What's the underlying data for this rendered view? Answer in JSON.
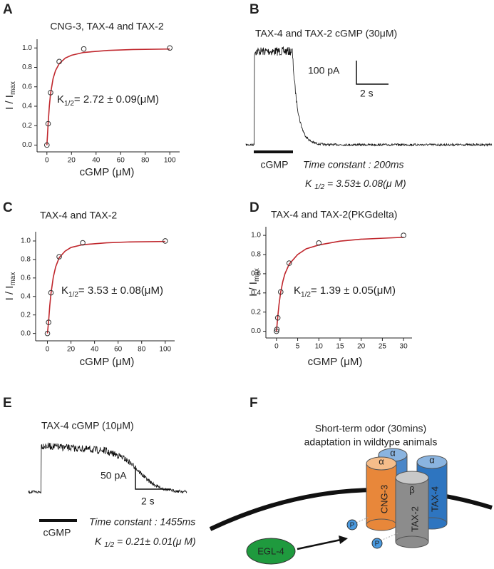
{
  "chart_data": [
    {
      "type": "scatter",
      "panel": "A",
      "title": "CNG-3, TAX-4 and TAX-2",
      "xlabel": "cGMP (μM)",
      "ylabel": "I / I",
      "ylabel_sub": "max",
      "annotation": {
        "main": "K",
        "sub": "1/2",
        "rest": "= 2.72 ± 0.09(μM)"
      },
      "x": [
        0,
        1,
        3,
        10,
        30,
        100
      ],
      "values": [
        0,
        0.22,
        0.54,
        0.86,
        0.99,
        1.0
      ],
      "fit": {
        "color": "#c0272d",
        "x": [
          0,
          0.5,
          1,
          2,
          3,
          5,
          7,
          10,
          15,
          20,
          30,
          50,
          70,
          100
        ],
        "values": [
          0,
          0.106,
          0.22,
          0.404,
          0.531,
          0.683,
          0.767,
          0.838,
          0.896,
          0.925,
          0.954,
          0.975,
          0.984,
          0.989
        ]
      },
      "xlim": [
        -8,
        108
      ],
      "ylim": [
        -0.07,
        1.09
      ],
      "xticks": [
        0,
        20,
        40,
        60,
        80,
        100
      ],
      "yticks": [
        {
          "value": 0,
          "label": "0.0"
        },
        {
          "value": 0.2,
          "label": "0.2"
        },
        {
          "value": 0.4,
          "label": "0.4"
        },
        {
          "value": 0.6,
          "label": "0.6"
        },
        {
          "value": 0.8,
          "label": "0.8"
        },
        {
          "value": 1,
          "label": "1.0"
        }
      ]
    },
    {
      "type": "scatter",
      "panel": "C",
      "title": "TAX-4 and TAX-2",
      "xlabel": "cGMP (μM)",
      "ylabel": "I / I",
      "ylabel_sub": "max",
      "annotation": {
        "main": "K",
        "sub": "1/2",
        "rest": "= 3.53 ± 0.08(μM)"
      },
      "x": [
        0,
        1,
        3,
        10,
        30,
        100
      ],
      "values": [
        0,
        0.12,
        0.44,
        0.83,
        0.98,
        1.0
      ],
      "fit": {
        "color": "#c0272d",
        "x": [
          0,
          1,
          2,
          3,
          5,
          7,
          10,
          15,
          20,
          30,
          50,
          70,
          100
        ],
        "values": [
          0,
          0.13,
          0.3,
          0.43,
          0.61,
          0.72,
          0.82,
          0.89,
          0.93,
          0.96,
          0.98,
          0.99,
          0.995
        ]
      },
      "xlim": [
        -10,
        108
      ],
      "ylim": [
        -0.08,
        1.1
      ],
      "xticks": [
        0,
        20,
        40,
        60,
        80,
        100
      ],
      "yticks": [
        {
          "value": 0,
          "label": "0.0"
        },
        {
          "value": 0.2,
          "label": "0.2"
        },
        {
          "value": 0.4,
          "label": "0.4"
        },
        {
          "value": 0.6,
          "label": "0.6"
        },
        {
          "value": 0.8,
          "label": "0.8"
        },
        {
          "value": 1,
          "label": "1.0"
        }
      ]
    },
    {
      "type": "scatter",
      "panel": "D",
      "title": "TAX-4 and TAX-2(PKGdelta)",
      "xlabel": "cGMP (μM)",
      "ylabel": "I / I",
      "ylabel_sub": "max",
      "annotation": {
        "main": "K",
        "sub": "1/2",
        "rest": "= 1.39  ± 0.05(μM)"
      },
      "x": [
        0,
        0.1,
        0.3,
        1,
        3,
        10,
        30
      ],
      "values": [
        0,
        0.02,
        0.14,
        0.41,
        0.71,
        0.92,
        1.0
      ],
      "fit": {
        "color": "#c0272d",
        "x": [
          0,
          0.3,
          0.6,
          1,
          1.5,
          2,
          3,
          5,
          7,
          10,
          15,
          20,
          25,
          30
        ],
        "values": [
          0,
          0.15,
          0.28,
          0.41,
          0.52,
          0.6,
          0.7,
          0.8,
          0.86,
          0.9,
          0.94,
          0.96,
          0.97,
          0.98
        ]
      },
      "xlim": [
        -2.5,
        32
      ],
      "ylim": [
        -0.07,
        1.09
      ],
      "xticks": [
        0,
        5,
        10,
        15,
        20,
        25,
        30
      ],
      "yticks": [
        {
          "value": 0,
          "label": "0.0"
        },
        {
          "value": 0.2,
          "label": "0.2"
        },
        {
          "value": 0.4,
          "label": "0.4"
        },
        {
          "value": 0.6,
          "label": "0.6"
        },
        {
          "value": 0.8,
          "label": "0.8"
        },
        {
          "value": 1,
          "label": "1.0"
        }
      ]
    }
  ],
  "traces": [
    {
      "panel": "B",
      "title": "TAX-4 and TAX-2 cGMP (30μM)",
      "scale_y": "100 pA",
      "scale_x": "2 s",
      "stimulus": "cGMP",
      "time_constant": "Time constant : 200ms",
      "k": {
        "main": "K ",
        "sub": "1/2",
        "rest": " = 3.53± 0.08(μ M)"
      }
    },
    {
      "panel": "E",
      "title": "TAX-4 cGMP (10μM)",
      "scale_y": "50 pA",
      "scale_x": "2 s",
      "stimulus": "cGMP",
      "time_constant": "Time constant : 1455ms",
      "k": {
        "main": "K ",
        "sub": "1/2",
        "rest": " = 0.21± 0.01(μ M)"
      }
    }
  ],
  "diagram": {
    "panel": "F",
    "title_lines": [
      "Short-term odor (30mins)",
      "adaptation in wildtype animals"
    ],
    "subunits": [
      "CNG-3",
      "TAX-2",
      "TAX-4"
    ],
    "greek": [
      "α",
      "α",
      "α",
      "β"
    ],
    "phospho": [
      "P",
      "P"
    ],
    "kinase": "EGL-4"
  }
}
